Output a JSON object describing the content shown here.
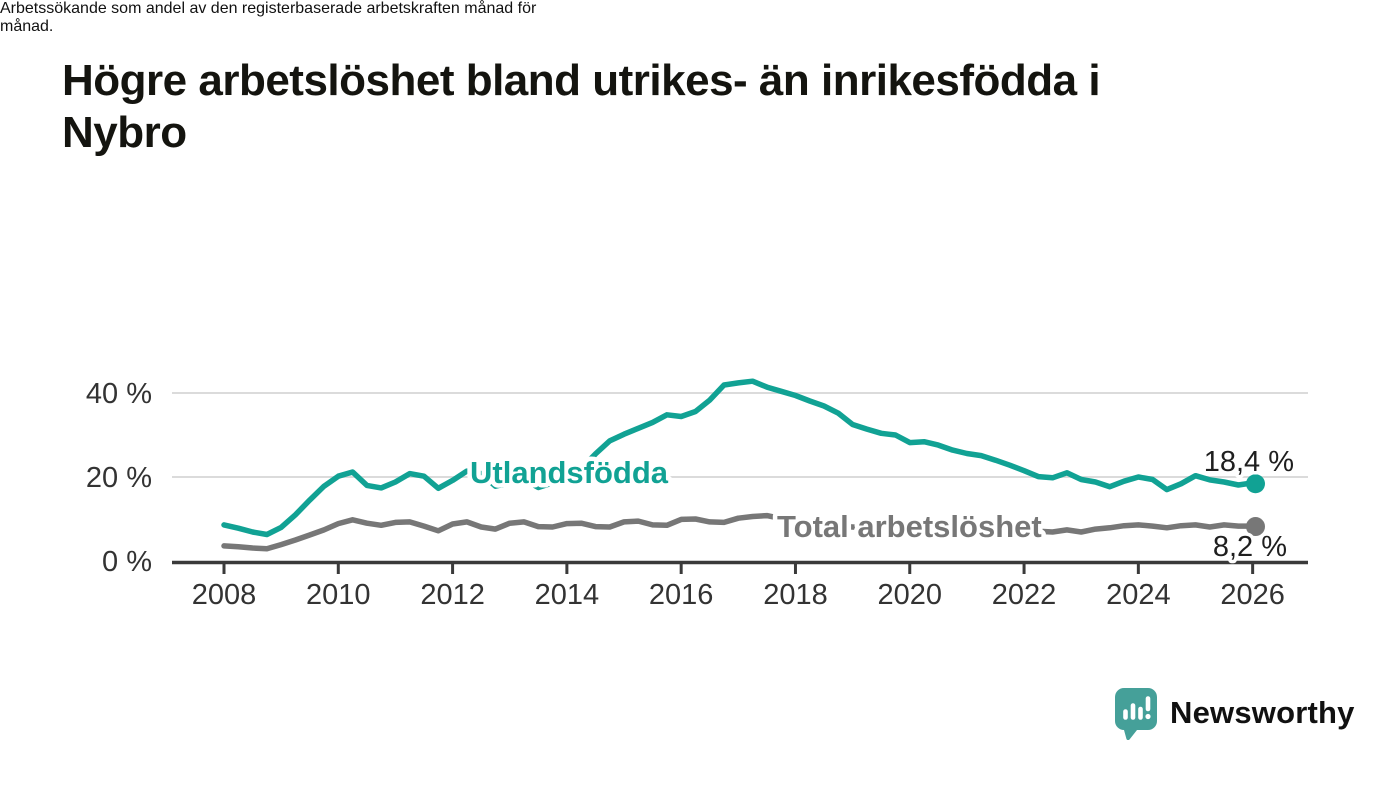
{
  "title": "Högre arbetslöshet bland utrikes- än inrikesfödda i Nybro",
  "title_lines": [
    "Högre arbetslöshet bland utrikes- än inrikesfödda i",
    "Nybro"
  ],
  "subtitle": "Arbetssökande som andel av den registerbaserade arbetskraften månad för månad.",
  "subtitle_lines": [
    "Arbetssökande som andel av den registerbaserade arbetskraften månad för",
    "månad."
  ],
  "colors": {
    "utlandsfodda": "#11A294",
    "total_arbetsloshet": "#777777",
    "axis": "#3A3A3A",
    "tick_label": "#333333",
    "grid": "#DBDBDB",
    "end_label_text": "#1F1F1F",
    "brand_teal": "#3A9B93"
  },
  "chart_data": {
    "type": "line",
    "unit": "%",
    "grid": "horizontal-only",
    "legend": "inline-labels",
    "ylim": [
      0,
      45
    ],
    "xlim": [
      2007.1,
      2027.0
    ],
    "yticks": [
      {
        "value": 0,
        "label": "0 %"
      },
      {
        "value": 20,
        "label": "20 %"
      },
      {
        "value": 40,
        "label": "40 %"
      }
    ],
    "xticks": [
      2008,
      2010,
      2012,
      2014,
      2016,
      2018,
      2020,
      2022,
      2024,
      2026
    ],
    "x": [
      2008,
      2008.25,
      2008.5,
      2008.75,
      2009,
      2009.25,
      2009.5,
      2009.75,
      2010,
      2010.25,
      2010.5,
      2010.75,
      2011,
      2011.25,
      2011.5,
      2011.75,
      2012,
      2012.25,
      2012.5,
      2012.75,
      2013,
      2013.25,
      2013.5,
      2013.75,
      2014,
      2014.25,
      2014.5,
      2014.75,
      2015,
      2015.25,
      2015.5,
      2015.75,
      2016,
      2016.25,
      2016.5,
      2016.75,
      2017,
      2017.25,
      2017.5,
      2017.75,
      2018,
      2018.25,
      2018.5,
      2018.75,
      2019,
      2019.25,
      2019.5,
      2019.75,
      2020,
      2020.25,
      2020.5,
      2020.75,
      2021,
      2021.25,
      2021.5,
      2021.75,
      2022,
      2022.25,
      2022.5,
      2022.75,
      2023,
      2023.25,
      2023.5,
      2023.75,
      2024,
      2024.25,
      2024.5,
      2024.75,
      2025,
      2025.25,
      2025.5,
      2025.75,
      2026,
      2026.05
    ],
    "series": [
      {
        "name": "Utlandsfödda",
        "color": "#11A294",
        "end_value": 18.4,
        "end_label": "18,4 %",
        "values": [
          8.6,
          7.8,
          6.9,
          6.3,
          8.0,
          11.0,
          14.5,
          17.8,
          20.2,
          21.2,
          18.0,
          17.4,
          18.8,
          20.8,
          20.2,
          17.3,
          19.2,
          21.4,
          20.8,
          17.8,
          18.6,
          19.4,
          17.5,
          18.6,
          19.6,
          22.0,
          25.5,
          28.6,
          30.2,
          31.6,
          33.0,
          34.8,
          34.4,
          35.6,
          38.3,
          41.9,
          42.4,
          42.8,
          41.4,
          40.4,
          39.4,
          38.1,
          36.9,
          35.2,
          32.5,
          31.4,
          30.4,
          30.0,
          28.2,
          28.4,
          27.6,
          26.4,
          25.6,
          25.1,
          24.0,
          22.8,
          21.5,
          20.1,
          19.8,
          21.0,
          19.4,
          18.8,
          17.7,
          19.0,
          20.0,
          19.4,
          17.0,
          18.4,
          20.3,
          19.3,
          18.8,
          18.1,
          18.6,
          18.4
        ]
      },
      {
        "name": "Total arbetslöshet",
        "color": "#777777",
        "end_value": 8.2,
        "end_label": "8,2 %",
        "values": [
          3.6,
          3.4,
          3.1,
          2.9,
          3.9,
          5.0,
          6.2,
          7.4,
          8.9,
          9.8,
          9.0,
          8.5,
          9.2,
          9.3,
          8.3,
          7.2,
          8.8,
          9.3,
          8.1,
          7.6,
          9.0,
          9.3,
          8.2,
          8.1,
          8.9,
          9.0,
          8.2,
          8.1,
          9.3,
          9.5,
          8.6,
          8.5,
          9.9,
          10.0,
          9.3,
          9.2,
          10.2,
          10.6,
          10.8,
          10.1,
          9.4,
          9.0,
          8.6,
          8.3,
          8.1,
          7.9,
          7.8,
          8.0,
          8.6,
          9.1,
          9.2,
          9.0,
          8.8,
          8.4,
          8.0,
          7.6,
          7.3,
          7.1,
          6.9,
          7.4,
          6.9,
          7.6,
          7.9,
          8.4,
          8.6,
          8.3,
          7.9,
          8.4,
          8.6,
          8.1,
          8.6,
          8.3,
          8.3,
          8.2
        ]
      }
    ]
  },
  "footer": {
    "brand": "Newsworthy",
    "logo_icon": "bar-chart-speech-bubble-icon"
  }
}
